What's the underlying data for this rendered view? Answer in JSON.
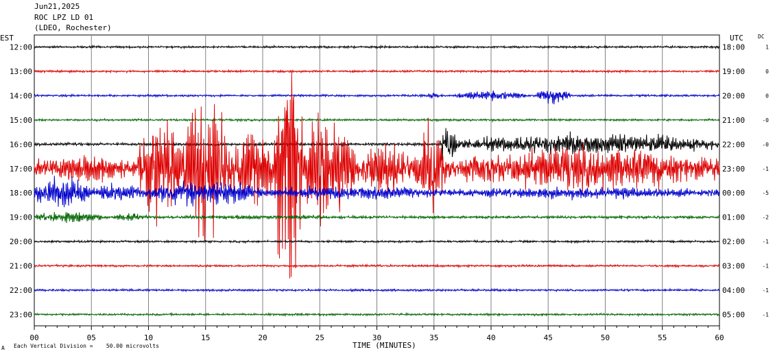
{
  "header": {
    "date": "Jun21,2025",
    "station": "ROC LPZ LD 01",
    "network": "(LDEO, Rochester)"
  },
  "axis_labels": {
    "left": "EST",
    "right": "UTC",
    "dc": "DC"
  },
  "footer": {
    "xlabel": "TIME (MINUTES)",
    "scale_note": "Each Vertical Division =    50.00 microvolts",
    "corner_mark": "A"
  },
  "colors": {
    "black": "#000000",
    "red": "#dd0000",
    "blue": "#0000cc",
    "green": "#006400",
    "grid": "#808080"
  },
  "chart_data": {
    "type": "line",
    "title": "",
    "xlabel": "TIME (MINUTES)",
    "xlim": [
      0,
      60
    ],
    "x_ticks": [
      "00",
      "05",
      "10",
      "15",
      "20",
      "25",
      "30",
      "35",
      "40",
      "45",
      "50",
      "55",
      "60"
    ],
    "rows": [
      {
        "est": "12:00",
        "utc": "18:00",
        "dc": "1",
        "color": "black",
        "amp": 1.5,
        "events": []
      },
      {
        "est": "13:00",
        "utc": "19:00",
        "dc": "0",
        "color": "red",
        "amp": 1.5,
        "events": []
      },
      {
        "est": "14:00",
        "utc": "20:00",
        "dc": "0",
        "color": "blue",
        "amp": 1.5,
        "events": [
          [
            34,
            36,
            4
          ],
          [
            37,
            43,
            7
          ],
          [
            44,
            47,
            12
          ]
        ]
      },
      {
        "est": "15:00",
        "utc": "21:00",
        "dc": "-0",
        "color": "green",
        "amp": 1.5,
        "events": []
      },
      {
        "est": "16:00",
        "utc": "22:00",
        "dc": "-0",
        "color": "black",
        "amp": 2,
        "events": [
          [
            35.5,
            37,
            30
          ],
          [
            37,
            60,
            14
          ],
          [
            46,
            48,
            20
          ]
        ]
      },
      {
        "est": "17:00",
        "utc": "23:00",
        "dc": "-1",
        "color": "red",
        "amp": 12,
        "events": [
          [
            0,
            9,
            20
          ],
          [
            9,
            13,
            75
          ],
          [
            13,
            17,
            115
          ],
          [
            17,
            21,
            60
          ],
          [
            21,
            23.5,
            160
          ],
          [
            23.5,
            28,
            75
          ],
          [
            28,
            33,
            40
          ],
          [
            33,
            36,
            55
          ],
          [
            36,
            60,
            32
          ]
        ]
      },
      {
        "est": "18:00",
        "utc": "00:00",
        "dc": "-5",
        "color": "blue",
        "amp": 5,
        "events": [
          [
            0,
            5,
            22
          ],
          [
            5,
            10,
            12
          ],
          [
            10,
            20,
            18
          ],
          [
            20,
            35,
            10
          ],
          [
            35,
            60,
            8
          ]
        ]
      },
      {
        "est": "19:00",
        "utc": "01:00",
        "dc": "-2",
        "color": "green",
        "amp": 2,
        "events": [
          [
            0,
            6,
            8
          ],
          [
            7,
            10,
            6
          ],
          [
            10,
            30,
            3
          ]
        ]
      },
      {
        "est": "20:00",
        "utc": "02:00",
        "dc": "-1",
        "color": "black",
        "amp": 1.5,
        "events": []
      },
      {
        "est": "21:00",
        "utc": "03:00",
        "dc": "-1",
        "color": "red",
        "amp": 1.5,
        "events": []
      },
      {
        "est": "22:00",
        "utc": "04:00",
        "dc": "-1",
        "color": "blue",
        "amp": 1.5,
        "events": []
      },
      {
        "est": "23:00",
        "utc": "05:00",
        "dc": "-1",
        "color": "green",
        "amp": 1.5,
        "events": []
      }
    ]
  }
}
